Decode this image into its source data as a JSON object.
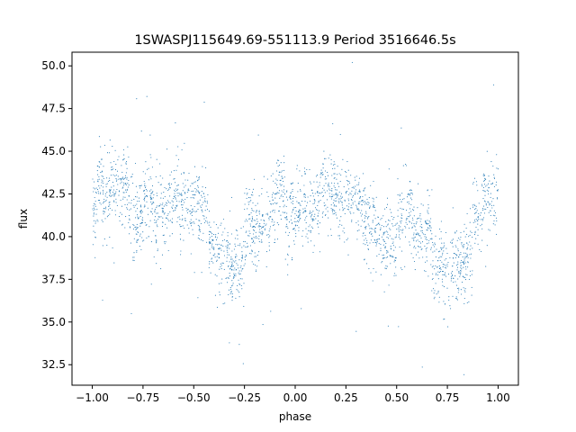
{
  "chart_data": {
    "type": "scatter",
    "title": "1SWASPJ115649.69-551113.9 Period 3516646.5s",
    "xlabel": "phase",
    "ylabel": "flux",
    "xlim": [
      -1.1,
      1.1
    ],
    "ylim": [
      31.3,
      50.8
    ],
    "x_ticks": [
      -1.0,
      -0.75,
      -0.5,
      -0.25,
      0.0,
      0.25,
      0.5,
      0.75,
      1.0
    ],
    "x_tick_labels": [
      "−1.00",
      "−0.75",
      "−0.50",
      "−0.25",
      "0.00",
      "0.25",
      "0.50",
      "0.75",
      "1.00"
    ],
    "y_ticks": [
      32.5,
      35.0,
      37.5,
      40.0,
      42.5,
      45.0,
      47.5,
      50.0
    ],
    "y_tick_labels": [
      "32.5",
      "35.0",
      "37.5",
      "40.0",
      "42.5",
      "45.0",
      "47.5",
      "50.0"
    ],
    "marker_color": "#1f77b4",
    "grid": false,
    "series": [
      {
        "x": [
          -1.0,
          -0.9,
          -0.8,
          -0.75,
          -0.7,
          -0.6,
          -0.5,
          -0.4,
          -0.3,
          -0.25,
          -0.2,
          -0.1,
          0.0,
          0.05,
          0.1,
          0.2,
          0.25,
          0.3,
          0.4,
          0.5,
          0.6,
          0.7,
          0.75,
          0.8,
          0.9,
          1.0
        ],
        "y": [
          41.5,
          42.3,
          41.5,
          42.0,
          42.5,
          41.0,
          40.8,
          40.2,
          39.3,
          39.0,
          39.5,
          40.8,
          42.0,
          42.5,
          42.3,
          41.8,
          42.0,
          42.5,
          41.0,
          40.8,
          40.2,
          39.3,
          39.0,
          39.5,
          40.8,
          42.5
        ]
      }
    ]
  }
}
